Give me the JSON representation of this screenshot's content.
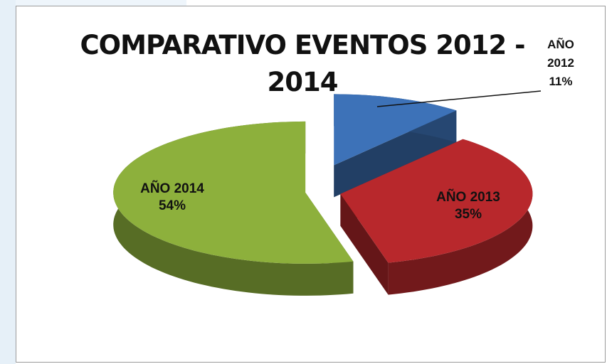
{
  "chart_data": {
    "type": "pie",
    "title": "COMPARATIVO EVENTOS 2012 - 2014",
    "categories": [
      "AÑO 2012",
      "AÑO 2013",
      "AÑO 2014"
    ],
    "values": [
      11,
      35,
      54
    ],
    "value_labels": [
      "11%",
      "35%",
      "54%"
    ],
    "colors": [
      "#3d72b8",
      "#b8282c",
      "#8db03c"
    ]
  }
}
